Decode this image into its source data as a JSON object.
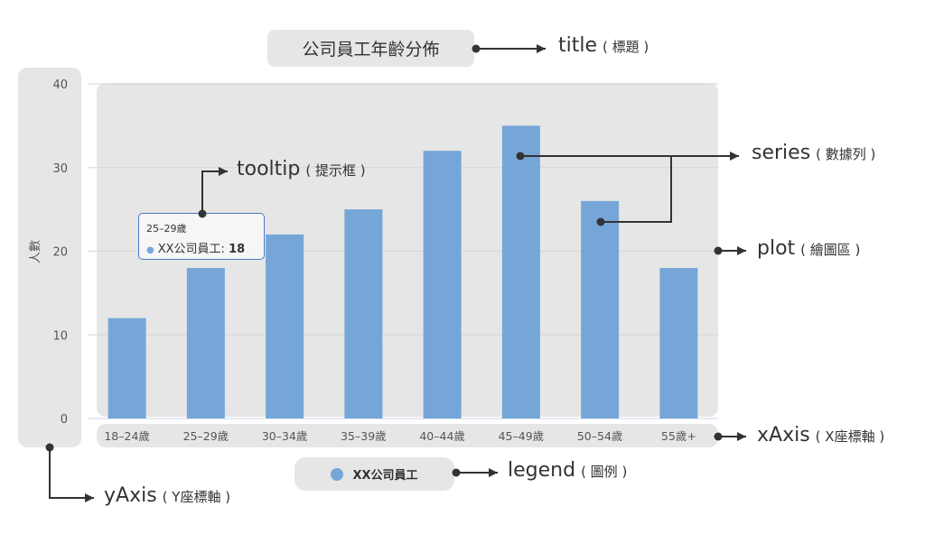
{
  "chart_data": {
    "type": "bar",
    "title": "公司員工年齡分佈",
    "categories": [
      "18–24歲",
      "25–29歲",
      "30–34歲",
      "35–39歲",
      "40–44歲",
      "45–49歲",
      "50–54歲",
      "55歲+"
    ],
    "series": [
      {
        "name": "XX公司員工",
        "values": [
          12,
          18,
          22,
          25,
          32,
          35,
          26,
          18
        ],
        "color": "#76a6d8"
      }
    ],
    "ylabel": "人數",
    "ylim": [
      0,
      40
    ],
    "yticks": [
      "0",
      "10",
      "20",
      "30",
      "40"
    ],
    "grid": true,
    "legend": "bottom"
  },
  "tooltip": {
    "category": "25–29歲",
    "series": "XX公司員工",
    "value": "18"
  },
  "annotations": {
    "title": {
      "main": "title",
      "sub": "( 標題 )"
    },
    "tooltip": {
      "main": "tooltip",
      "sub": "( 提示框 )"
    },
    "series": {
      "main": "series",
      "sub": "( 數據列 )"
    },
    "plot": {
      "main": "plot",
      "sub": "( 繪圖區 )"
    },
    "xAxis": {
      "main": "xAxis",
      "sub": "( X座標軸 )"
    },
    "legend": {
      "main": "legend",
      "sub": "( 圖例 )"
    },
    "yAxis": {
      "main": "yAxis",
      "sub": "( Y座標軸 )"
    }
  },
  "colors": {
    "highlight_box": "#e6e6e6",
    "bar": "#76a6d8",
    "arrow": "#333333",
    "tooltip_border": "#4a78c8"
  }
}
